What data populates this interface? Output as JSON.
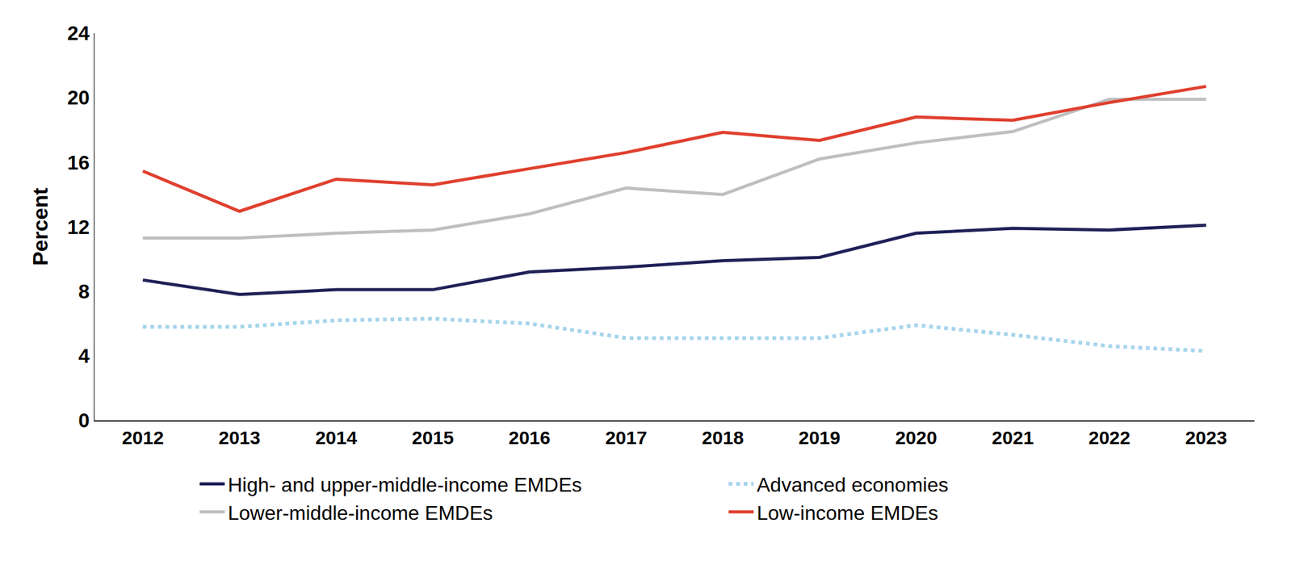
{
  "chart_data": {
    "type": "line",
    "y_label": "Percent",
    "categories": [
      "2012",
      "2013",
      "2014",
      "2015",
      "2016",
      "2017",
      "2018",
      "2019",
      "2020",
      "2021",
      "2022",
      "2023"
    ],
    "series": [
      {
        "name": "High- and upper-middle-income EMDEs",
        "color": "#1f2158",
        "line_style": "solid",
        "values": [
          8.7,
          7.8,
          8.1,
          8.1,
          9.2,
          9.5,
          9.9,
          10.1,
          11.6,
          11.9,
          11.8,
          12.1
        ]
      },
      {
        "name": "Advanced economies",
        "color": "#a6d5ec",
        "line_style": "dotted",
        "values": [
          5.8,
          5.8,
          6.2,
          6.3,
          6.0,
          5.1,
          5.1,
          5.1,
          5.9,
          5.3,
          4.6,
          4.3
        ]
      },
      {
        "name": "Lower-middle-income EMDEs",
        "color": "#bfbfbf",
        "line_style": "solid",
        "values": [
          11.3,
          11.3,
          11.6,
          11.8,
          12.8,
          14.4,
          14.0,
          16.2,
          17.2,
          17.9,
          19.9,
          19.9
        ]
      },
      {
        "name": "Low-income EMDEs",
        "color": "#e0402f",
        "line_style": "solid",
        "values": [
          15.45,
          12.96,
          14.95,
          14.6,
          15.6,
          16.6,
          17.85,
          17.35,
          18.8,
          18.6,
          19.7,
          20.7
        ]
      }
    ],
    "ylim": [
      0,
      24
    ],
    "yticks": [
      0,
      4,
      8,
      12,
      16,
      20,
      24
    ],
    "grid": false,
    "legend": "bottom"
  }
}
